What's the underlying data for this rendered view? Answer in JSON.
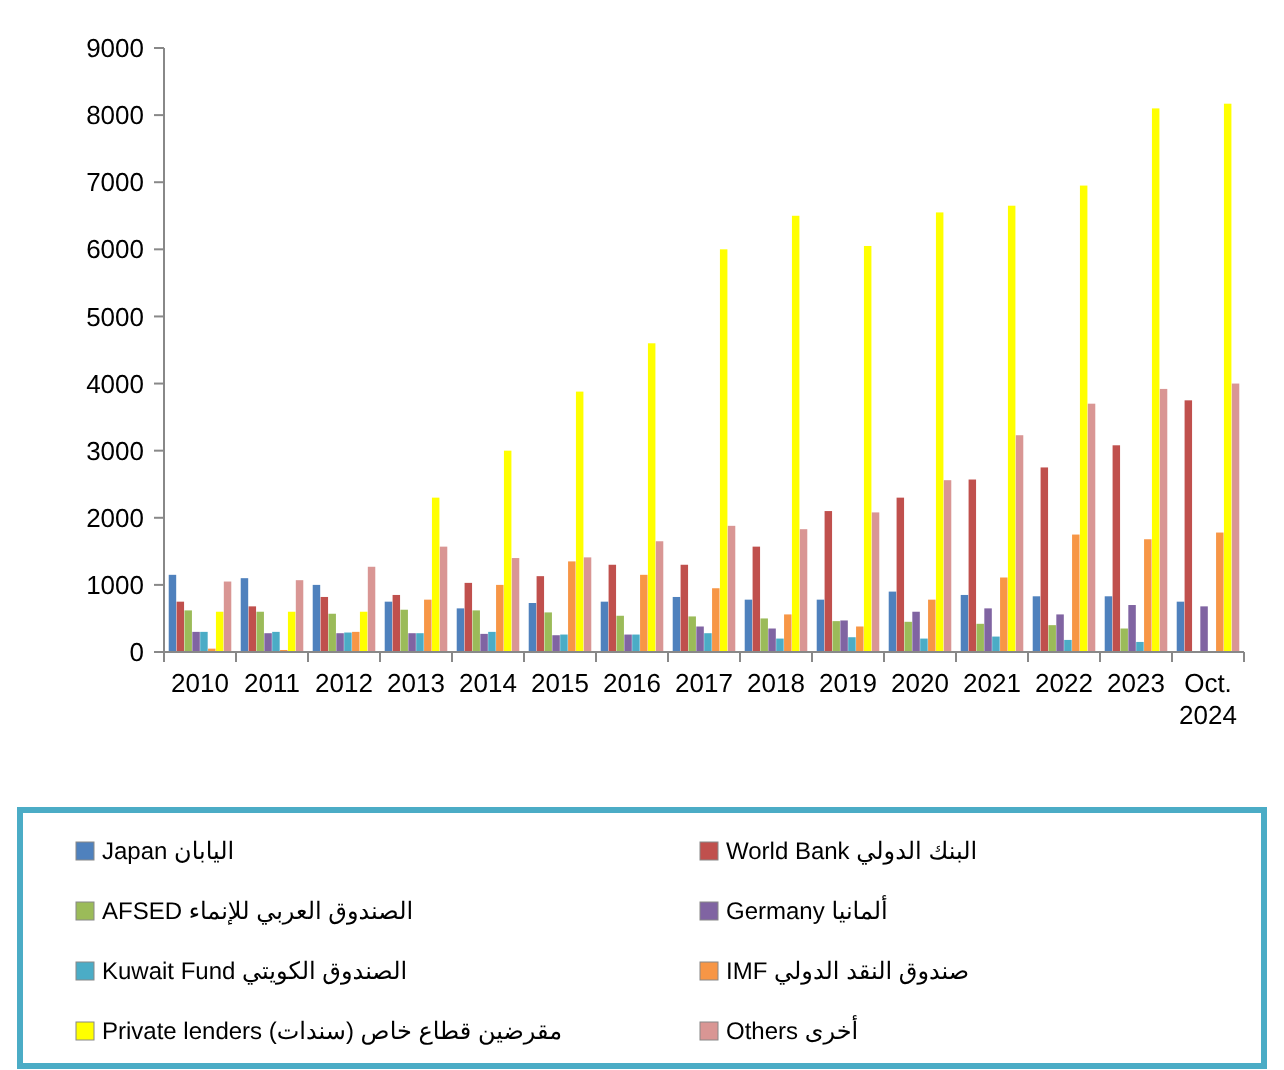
{
  "chart_data": {
    "type": "bar",
    "categories": [
      "2010",
      "2011",
      "2012",
      "2013",
      "2014",
      "2015",
      "2016",
      "2017",
      "2018",
      "2019",
      "2020",
      "2021",
      "2022",
      "2023",
      "Oct. 2024"
    ],
    "ylim": [
      0,
      9000
    ],
    "yticks": [
      0,
      1000,
      2000,
      3000,
      4000,
      5000,
      6000,
      7000,
      8000,
      9000
    ],
    "grid": false,
    "legend": "bottom",
    "series": [
      {
        "name": "Japan اليابان",
        "color": "#4f81bd",
        "values": [
          1150,
          1100,
          1000,
          750,
          650,
          730,
          750,
          820,
          780,
          780,
          900,
          850,
          830,
          830,
          750
        ]
      },
      {
        "name": "World Bank البنك الدولي",
        "color": "#c0504d",
        "values": [
          750,
          680,
          820,
          850,
          1030,
          1130,
          1300,
          1300,
          1570,
          2100,
          2300,
          2570,
          2750,
          3080,
          3750
        ]
      },
      {
        "name": "AFSED  الصندوق العربي للإنماء",
        "color": "#9bbb59",
        "values": [
          620,
          600,
          570,
          630,
          620,
          590,
          540,
          530,
          500,
          460,
          450,
          420,
          400,
          350,
          null
        ]
      },
      {
        "name": "Germany ألمانيا",
        "color": "#8064a2",
        "values": [
          300,
          280,
          280,
          280,
          270,
          250,
          260,
          380,
          350,
          470,
          600,
          650,
          560,
          700,
          680
        ]
      },
      {
        "name": "Kuwait Fund الصندوق الكويتي",
        "color": "#4bacc6",
        "values": [
          300,
          300,
          290,
          280,
          300,
          260,
          260,
          280,
          200,
          220,
          200,
          230,
          180,
          150,
          null
        ]
      },
      {
        "name": "IMF صندوق النقد الدولي",
        "color": "#f79646",
        "values": [
          50,
          30,
          300,
          780,
          1000,
          1350,
          1150,
          950,
          560,
          380,
          780,
          1110,
          1750,
          1680,
          1780
        ]
      },
      {
        "name": "Private lenders مقرضين قطاع خاص (سندات)",
        "color": "#ffff00",
        "values": [
          600,
          600,
          600,
          2300,
          3000,
          3880,
          4600,
          6000,
          6500,
          6050,
          6550,
          6650,
          6950,
          8100,
          8170
        ]
      },
      {
        "name": "Others أخرى",
        "color": "#d99694",
        "values": [
          1050,
          1070,
          1270,
          1570,
          1400,
          1410,
          1650,
          1880,
          1830,
          2080,
          2560,
          3230,
          3700,
          3920,
          4000
        ]
      }
    ]
  }
}
